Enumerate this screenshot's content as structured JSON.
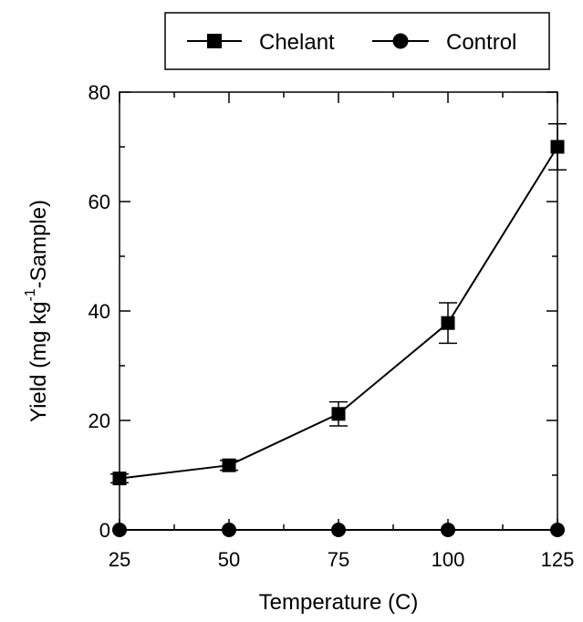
{
  "chart_data": {
    "type": "line",
    "xlabel": "Temperature (C)",
    "ylabel": {
      "prefix": "Yield (mg kg",
      "superscript": "-1",
      "suffix": "-Sample)"
    },
    "xlim": [
      25,
      125
    ],
    "ylim": [
      0,
      80
    ],
    "x_ticks": [
      25,
      50,
      75,
      100,
      125
    ],
    "y_ticks": [
      0,
      20,
      40,
      60,
      80
    ],
    "x": [
      25,
      50,
      75,
      100,
      125
    ],
    "grid": false,
    "legend_position": "top-right",
    "series": [
      {
        "name": "Chelant",
        "marker": "square",
        "values": [
          9.4,
          11.8,
          21.2,
          37.8,
          70.0
        ],
        "errors": [
          0.8,
          0.9,
          2.2,
          3.7,
          4.2
        ]
      },
      {
        "name": "Control",
        "marker": "circle",
        "values": [
          0,
          0,
          0,
          0,
          0
        ],
        "errors": [
          0,
          0,
          0,
          0,
          0
        ]
      }
    ],
    "colors": {
      "line": "#000000"
    }
  }
}
